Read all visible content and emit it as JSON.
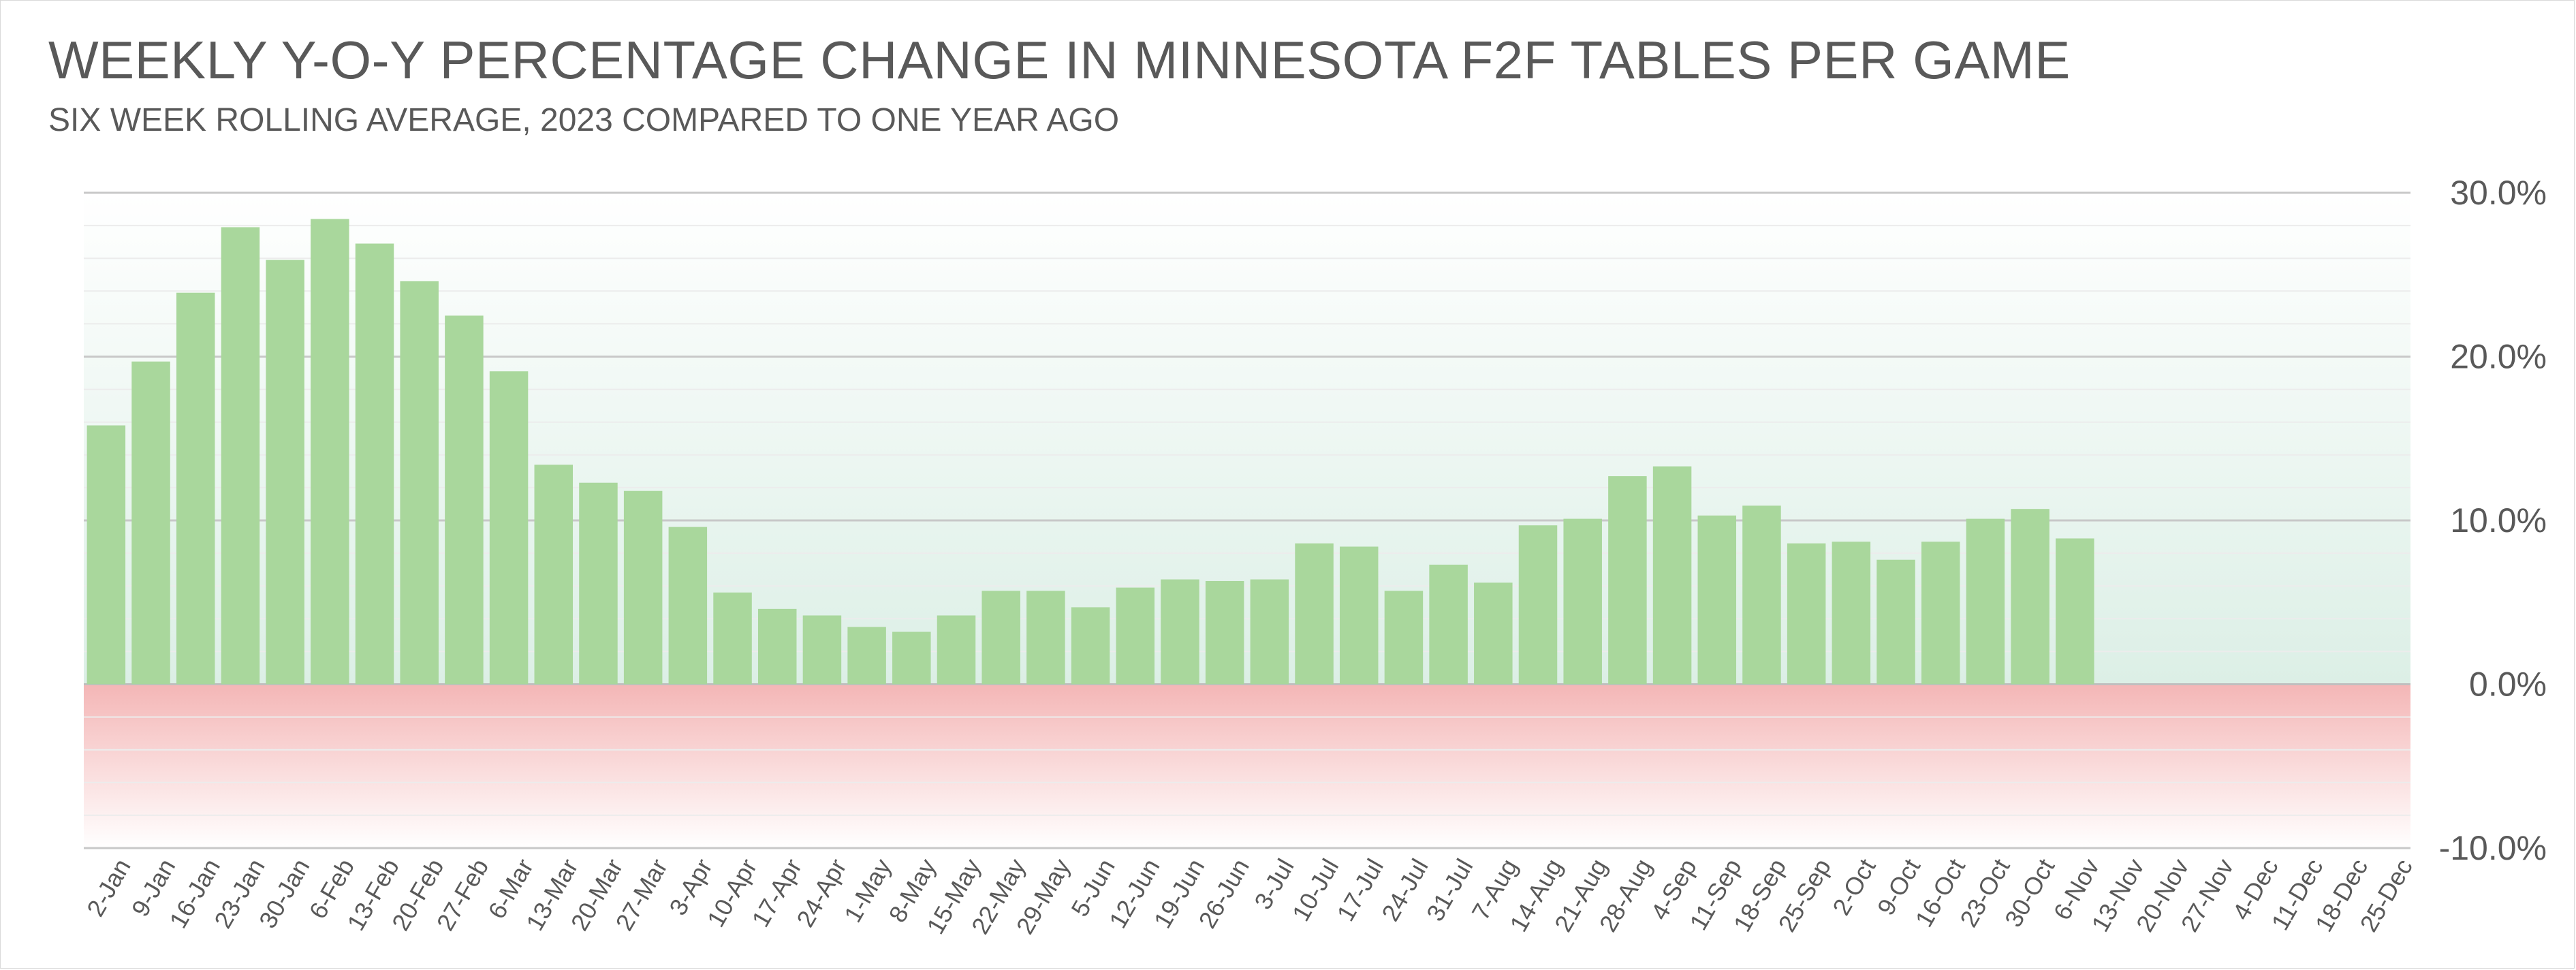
{
  "title": "WEEKLY Y-O-Y PERCENTAGE CHANGE IN MINNESOTA F2F TABLES PER GAME",
  "subtitle": "SIX WEEK ROLLING AVERAGE, 2023 COMPARED TO ONE YEAR AGO",
  "chart_data": {
    "type": "bar",
    "title": "WEEKLY Y-O-Y PERCENTAGE CHANGE IN MINNESOTA F2F TABLES PER GAME",
    "subtitle": "SIX WEEK ROLLING AVERAGE, 2023 COMPARED TO ONE YEAR AGO",
    "xlabel": "",
    "ylabel": "",
    "ylim": [
      -10,
      30
    ],
    "y_ticks": [
      "30.0%",
      "20.0%",
      "10.0%",
      "0.0%",
      "-10.0%"
    ],
    "y_tick_values": [
      30,
      20,
      10,
      0,
      -10
    ],
    "y_axis_position": "right",
    "grid": true,
    "bar_color": "#a9d79c",
    "positive_band_color": "#dcefe6",
    "negative_band_color": "#f4b6b6",
    "categories": [
      "2-Jan",
      "9-Jan",
      "16-Jan",
      "23-Jan",
      "30-Jan",
      "6-Feb",
      "13-Feb",
      "20-Feb",
      "27-Feb",
      "6-Mar",
      "13-Mar",
      "20-Mar",
      "27-Mar",
      "3-Apr",
      "10-Apr",
      "17-Apr",
      "24-Apr",
      "1-May",
      "8-May",
      "15-May",
      "22-May",
      "29-May",
      "5-Jun",
      "12-Jun",
      "19-Jun",
      "26-Jun",
      "3-Jul",
      "10-Jul",
      "17-Jul",
      "24-Jul",
      "31-Jul",
      "7-Aug",
      "14-Aug",
      "21-Aug",
      "28-Aug",
      "4-Sep",
      "11-Sep",
      "18-Sep",
      "25-Sep",
      "2-Oct",
      "9-Oct",
      "16-Oct",
      "23-Oct",
      "30-Oct",
      "6-Nov",
      "13-Nov",
      "20-Nov",
      "27-Nov",
      "4-Dec",
      "11-Dec",
      "18-Dec",
      "25-Dec"
    ],
    "values": [
      15.8,
      19.7,
      23.9,
      27.9,
      25.9,
      28.4,
      26.9,
      24.6,
      22.5,
      19.1,
      13.4,
      12.3,
      11.8,
      9.6,
      5.6,
      4.6,
      4.2,
      3.5,
      3.2,
      4.2,
      5.7,
      5.7,
      4.7,
      5.9,
      6.4,
      6.3,
      6.4,
      8.6,
      8.4,
      5.7,
      7.3,
      6.2,
      9.7,
      10.1,
      12.7,
      13.3,
      10.3,
      10.9,
      8.6,
      8.7,
      7.6,
      8.7,
      10.1,
      10.7,
      8.9,
      null,
      null,
      null,
      null,
      null,
      null,
      null
    ]
  }
}
